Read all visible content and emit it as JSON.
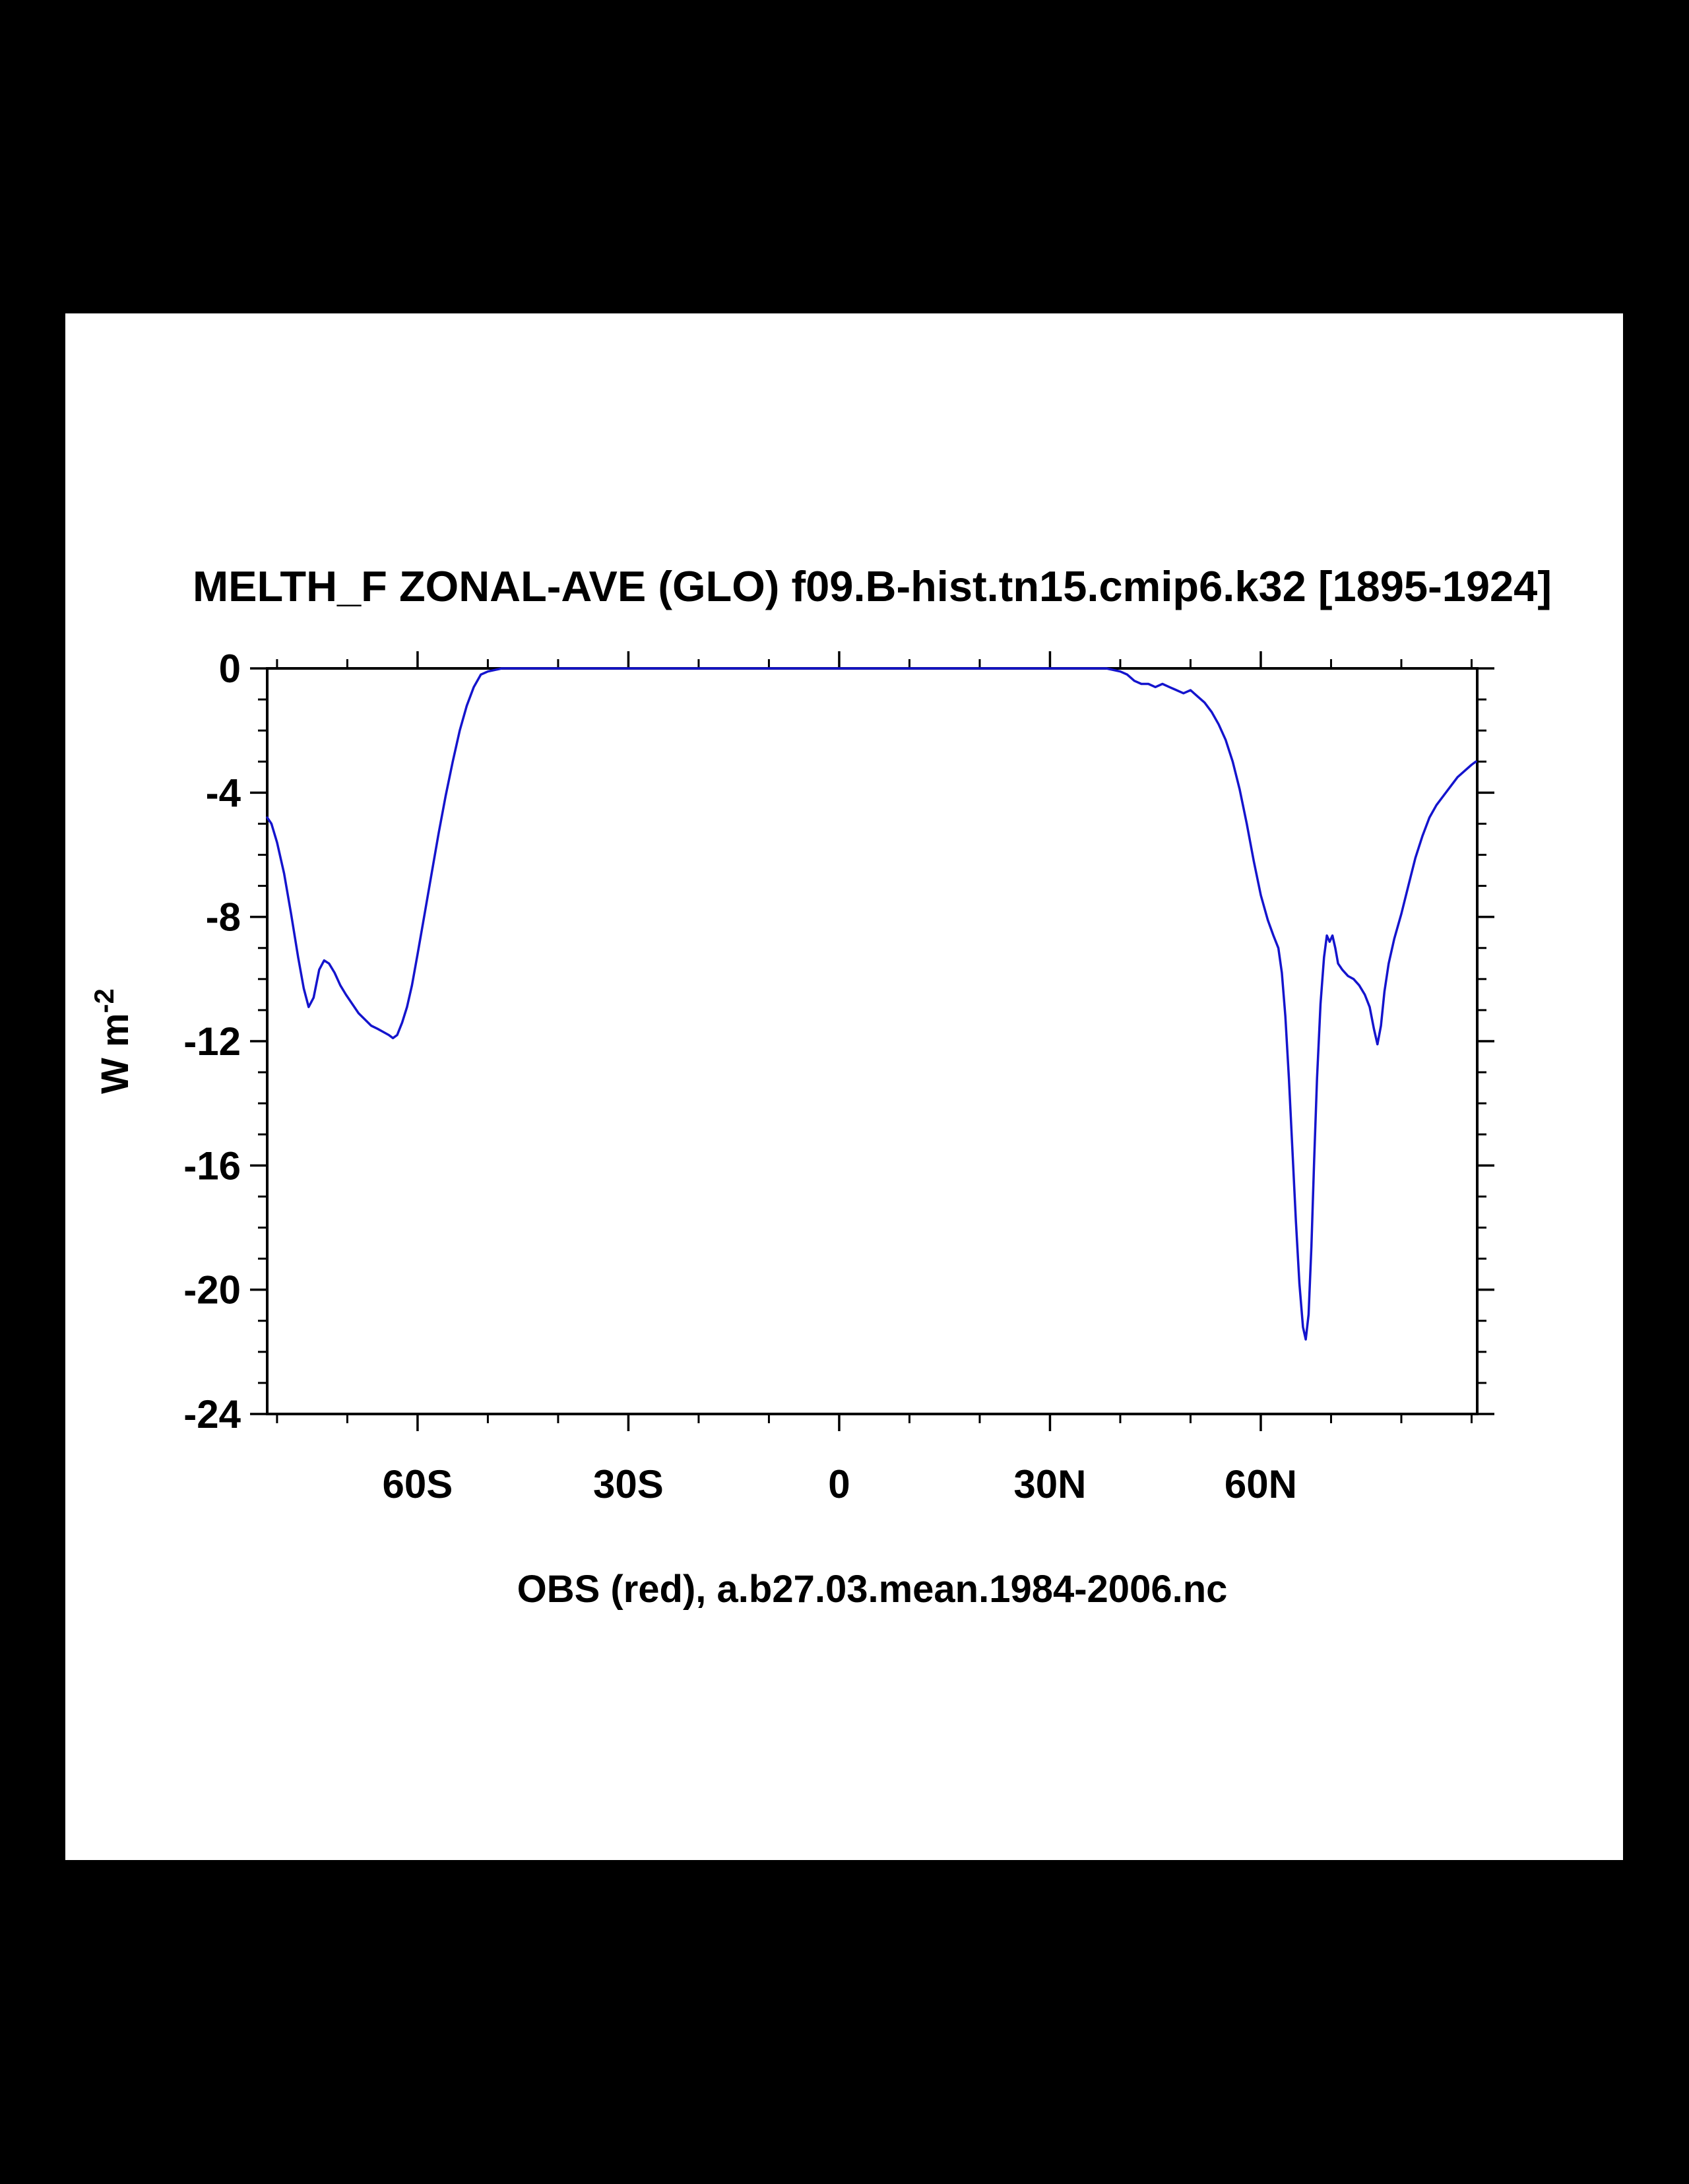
{
  "page": {
    "background": "#000000",
    "canvas_background": "#ffffff"
  },
  "chart_data": {
    "type": "line",
    "title": "MELTH_F ZONAL-AVE (GLO) f09.B-hist.tn15.cmip6.k32 [1895-1924]",
    "subtitle": "OBS (red), a.b27.03.mean.1984-2006.nc",
    "ylabel_base": "W m",
    "ylabel_exponent": "-2",
    "xlim": [
      -81.4,
      90.8
    ],
    "ylim": [
      -24,
      0
    ],
    "grid": false,
    "legend": "none",
    "frame_color": "#000000",
    "x_axis": {
      "major_ticks": [
        {
          "value": -60,
          "label": "60S"
        },
        {
          "value": -30,
          "label": "30S"
        },
        {
          "value": 0,
          "label": "0"
        },
        {
          "value": 30,
          "label": "30N"
        },
        {
          "value": 60,
          "label": "60N"
        }
      ],
      "minor_step": 10
    },
    "y_axis": {
      "major_ticks": [
        {
          "value": 0,
          "label": "0"
        },
        {
          "value": -4,
          "label": "-4"
        },
        {
          "value": -8,
          "label": "-8"
        },
        {
          "value": -12,
          "label": "-12"
        },
        {
          "value": -16,
          "label": "-16"
        },
        {
          "value": -20,
          "label": "-20"
        },
        {
          "value": -24,
          "label": "-24"
        }
      ],
      "minor_step": 1
    },
    "series": [
      {
        "name": "f09.B-hist.tn15.cmip6.k32 [1895-1924]",
        "color": "#1414cd",
        "points": [
          [
            -81.4,
            -4.8
          ],
          [
            -80.8,
            -5.0
          ],
          [
            -80.0,
            -5.6
          ],
          [
            -79.0,
            -6.6
          ],
          [
            -78.0,
            -7.9
          ],
          [
            -77.0,
            -9.3
          ],
          [
            -76.2,
            -10.3
          ],
          [
            -75.5,
            -10.9
          ],
          [
            -74.8,
            -10.6
          ],
          [
            -74.0,
            -9.7
          ],
          [
            -73.3,
            -9.4
          ],
          [
            -72.6,
            -9.5
          ],
          [
            -71.8,
            -9.8
          ],
          [
            -71.0,
            -10.2
          ],
          [
            -70.2,
            -10.5
          ],
          [
            -69.3,
            -10.8
          ],
          [
            -68.4,
            -11.1
          ],
          [
            -67.5,
            -11.3
          ],
          [
            -66.6,
            -11.5
          ],
          [
            -65.7,
            -11.6
          ],
          [
            -64.9,
            -11.7
          ],
          [
            -64.1,
            -11.8
          ],
          [
            -63.5,
            -11.9
          ],
          [
            -62.9,
            -11.8
          ],
          [
            -62.2,
            -11.4
          ],
          [
            -61.5,
            -10.9
          ],
          [
            -60.8,
            -10.2
          ],
          [
            -60.0,
            -9.2
          ],
          [
            -59.0,
            -7.9
          ],
          [
            -58.0,
            -6.6
          ],
          [
            -57.0,
            -5.3
          ],
          [
            -56.0,
            -4.1
          ],
          [
            -55.0,
            -3.0
          ],
          [
            -54.0,
            -2.0
          ],
          [
            -53.0,
            -1.2
          ],
          [
            -52.0,
            -0.6
          ],
          [
            -51.0,
            -0.2
          ],
          [
            -50.0,
            -0.1
          ],
          [
            -48.0,
            0.0
          ],
          [
            -45.0,
            0.0
          ],
          [
            -40.0,
            0.0
          ],
          [
            -35.0,
            0.0
          ],
          [
            -30.0,
            0.0
          ],
          [
            -25.0,
            0.0
          ],
          [
            -20.0,
            0.0
          ],
          [
            -15.0,
            0.0
          ],
          [
            -10.0,
            0.0
          ],
          [
            -5.0,
            0.0
          ],
          [
            0.0,
            0.0
          ],
          [
            5.0,
            0.0
          ],
          [
            10.0,
            0.0
          ],
          [
            15.0,
            0.0
          ],
          [
            20.0,
            0.0
          ],
          [
            25.0,
            0.0
          ],
          [
            30.0,
            0.0
          ],
          [
            35.0,
            0.0
          ],
          [
            38.0,
            0.0
          ],
          [
            40.0,
            -0.1
          ],
          [
            41.0,
            -0.2
          ],
          [
            42.0,
            -0.4
          ],
          [
            43.0,
            -0.5
          ],
          [
            44.0,
            -0.5
          ],
          [
            45.0,
            -0.6
          ],
          [
            46.0,
            -0.5
          ],
          [
            47.0,
            -0.6
          ],
          [
            48.0,
            -0.7
          ],
          [
            49.0,
            -0.8
          ],
          [
            50.0,
            -0.7
          ],
          [
            51.0,
            -0.9
          ],
          [
            52.0,
            -1.1
          ],
          [
            53.0,
            -1.4
          ],
          [
            54.0,
            -1.8
          ],
          [
            55.0,
            -2.3
          ],
          [
            56.0,
            -3.0
          ],
          [
            57.0,
            -3.9
          ],
          [
            58.0,
            -5.0
          ],
          [
            59.0,
            -6.2
          ],
          [
            60.0,
            -7.3
          ],
          [
            61.0,
            -8.1
          ],
          [
            61.8,
            -8.6
          ],
          [
            62.5,
            -9.0
          ],
          [
            63.0,
            -9.8
          ],
          [
            63.5,
            -11.2
          ],
          [
            64.0,
            -13.2
          ],
          [
            64.5,
            -15.5
          ],
          [
            65.0,
            -17.8
          ],
          [
            65.5,
            -19.8
          ],
          [
            66.0,
            -21.2
          ],
          [
            66.4,
            -21.6
          ],
          [
            66.8,
            -20.8
          ],
          [
            67.2,
            -18.6
          ],
          [
            67.6,
            -15.8
          ],
          [
            68.0,
            -13.2
          ],
          [
            68.5,
            -10.8
          ],
          [
            69.0,
            -9.3
          ],
          [
            69.4,
            -8.6
          ],
          [
            69.8,
            -8.8
          ],
          [
            70.2,
            -8.6
          ],
          [
            70.6,
            -9.0
          ],
          [
            71.0,
            -9.5
          ],
          [
            71.6,
            -9.7
          ],
          [
            72.4,
            -9.9
          ],
          [
            73.2,
            -10.0
          ],
          [
            74.0,
            -10.2
          ],
          [
            74.8,
            -10.5
          ],
          [
            75.5,
            -10.9
          ],
          [
            76.1,
            -11.6
          ],
          [
            76.6,
            -12.1
          ],
          [
            77.1,
            -11.5
          ],
          [
            77.6,
            -10.4
          ],
          [
            78.2,
            -9.5
          ],
          [
            79.0,
            -8.7
          ],
          [
            80.0,
            -7.9
          ],
          [
            81.0,
            -7.0
          ],
          [
            82.0,
            -6.1
          ],
          [
            83.0,
            -5.4
          ],
          [
            84.0,
            -4.8
          ],
          [
            85.0,
            -4.4
          ],
          [
            86.0,
            -4.1
          ],
          [
            87.0,
            -3.8
          ],
          [
            88.0,
            -3.5
          ],
          [
            89.0,
            -3.3
          ],
          [
            90.0,
            -3.1
          ],
          [
            90.6,
            -3.0
          ]
        ]
      }
    ]
  }
}
